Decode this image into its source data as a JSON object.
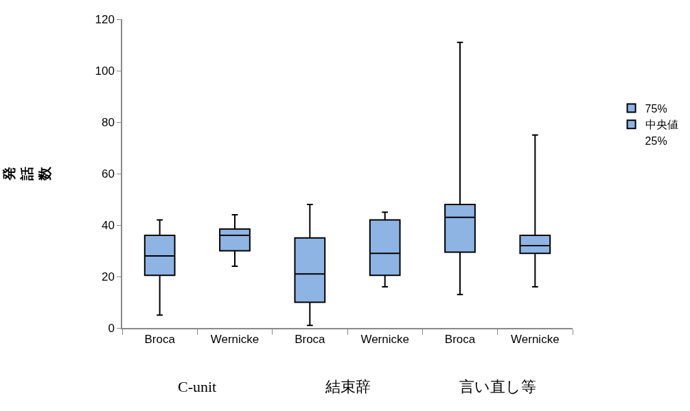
{
  "chart_data": {
    "type": "box",
    "ylabel": "発話数",
    "categories": [
      "Broca",
      "Wernicke",
      "Broca",
      "Wernicke",
      "Broca",
      "Wernicke"
    ],
    "annotations": [
      "C-unit",
      "結束辞",
      "言い直し等"
    ],
    "ylim": [
      0,
      120
    ],
    "yticks": [
      0,
      20,
      40,
      60,
      80,
      100,
      120
    ],
    "legend": "right",
    "series": [
      {
        "name": "75%",
        "color": "#8eb4e3",
        "boxes": [
          {
            "low": 5,
            "q1": 20.5,
            "median": 28,
            "q3": 36,
            "high": 42
          },
          {
            "low": 24,
            "q1": 30,
            "median": 36,
            "q3": 38.5,
            "high": 44
          },
          {
            "low": 1,
            "q1": 10,
            "median": 21,
            "q3": 35,
            "high": 48
          },
          {
            "low": 16,
            "q1": 20.5,
            "median": 29,
            "q3": 42,
            "high": 45
          },
          {
            "low": 13,
            "q1": 29.5,
            "median": 43,
            "q3": 48,
            "high": 111
          },
          {
            "low": 16,
            "q1": 29,
            "median": 32,
            "q3": 36,
            "high": 75
          }
        ]
      },
      {
        "name": "中央値",
        "color": "#8eb4e3",
        "values": [
          null,
          null,
          null,
          null,
          null,
          null
        ]
      },
      {
        "name": "25%",
        "values": [
          null,
          null,
          null,
          null,
          null,
          null
        ]
      }
    ]
  }
}
